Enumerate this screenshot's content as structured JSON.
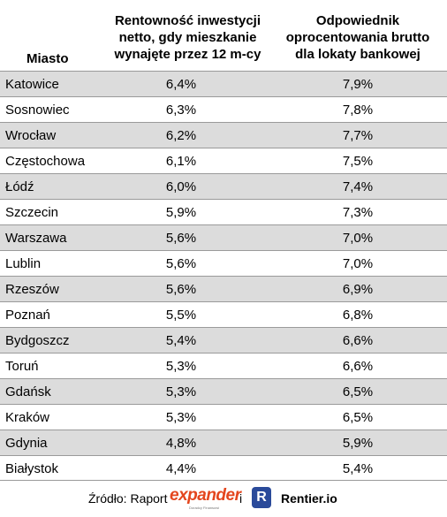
{
  "header": {
    "city_label": "Miasto",
    "col1_lines": [
      "Rentowność inwestycji",
      "netto, gdy mieszkanie",
      "wynajęte przez 12 m-cy"
    ],
    "col2_lines": [
      "Odpowiednik",
      "oprocentowania brutto",
      "dla lokaty bankowej"
    ]
  },
  "rows": [
    {
      "city": "Katowice",
      "v1": "6,4%",
      "v2": "7,9%"
    },
    {
      "city": "Sosnowiec",
      "v1": "6,3%",
      "v2": "7,8%"
    },
    {
      "city": "Wrocław",
      "v1": "6,2%",
      "v2": "7,7%"
    },
    {
      "city": "Częstochowa",
      "v1": "6,1%",
      "v2": "7,5%"
    },
    {
      "city": "Łódź",
      "v1": "6,0%",
      "v2": "7,4%"
    },
    {
      "city": "Szczecin",
      "v1": "5,9%",
      "v2": "7,3%"
    },
    {
      "city": "Warszawa",
      "v1": "5,6%",
      "v2": "7,0%"
    },
    {
      "city": "Lublin",
      "v1": "5,6%",
      "v2": "7,0%"
    },
    {
      "city": "Rzeszów",
      "v1": "5,6%",
      "v2": "6,9%"
    },
    {
      "city": "Poznań",
      "v1": "5,5%",
      "v2": "6,8%"
    },
    {
      "city": "Bydgoszcz",
      "v1": "5,4%",
      "v2": "6,6%"
    },
    {
      "city": "Toruń",
      "v1": "5,3%",
      "v2": "6,6%"
    },
    {
      "city": "Gdańsk",
      "v1": "5,3%",
      "v2": "6,5%"
    },
    {
      "city": "Kraków",
      "v1": "5,3%",
      "v2": "6,5%"
    },
    {
      "city": "Gdynia",
      "v1": "4,8%",
      "v2": "5,9%"
    },
    {
      "city": "Białystok",
      "v1": "4,4%",
      "v2": "5,4%"
    }
  ],
  "footer": {
    "source_label": "Źródło: Raport",
    "expander_x": "e",
    "expander_rest": "xpander",
    "expander_tagline": "Doradcy Finansowi",
    "conjunction": "i",
    "rentier_logo_letter": "R",
    "rentier_name": "Rentier.io"
  },
  "colors": {
    "row_shade": "#dcdcdc",
    "expander_brand": "#e4461e",
    "rentier_brand": "#2a4a9a"
  }
}
